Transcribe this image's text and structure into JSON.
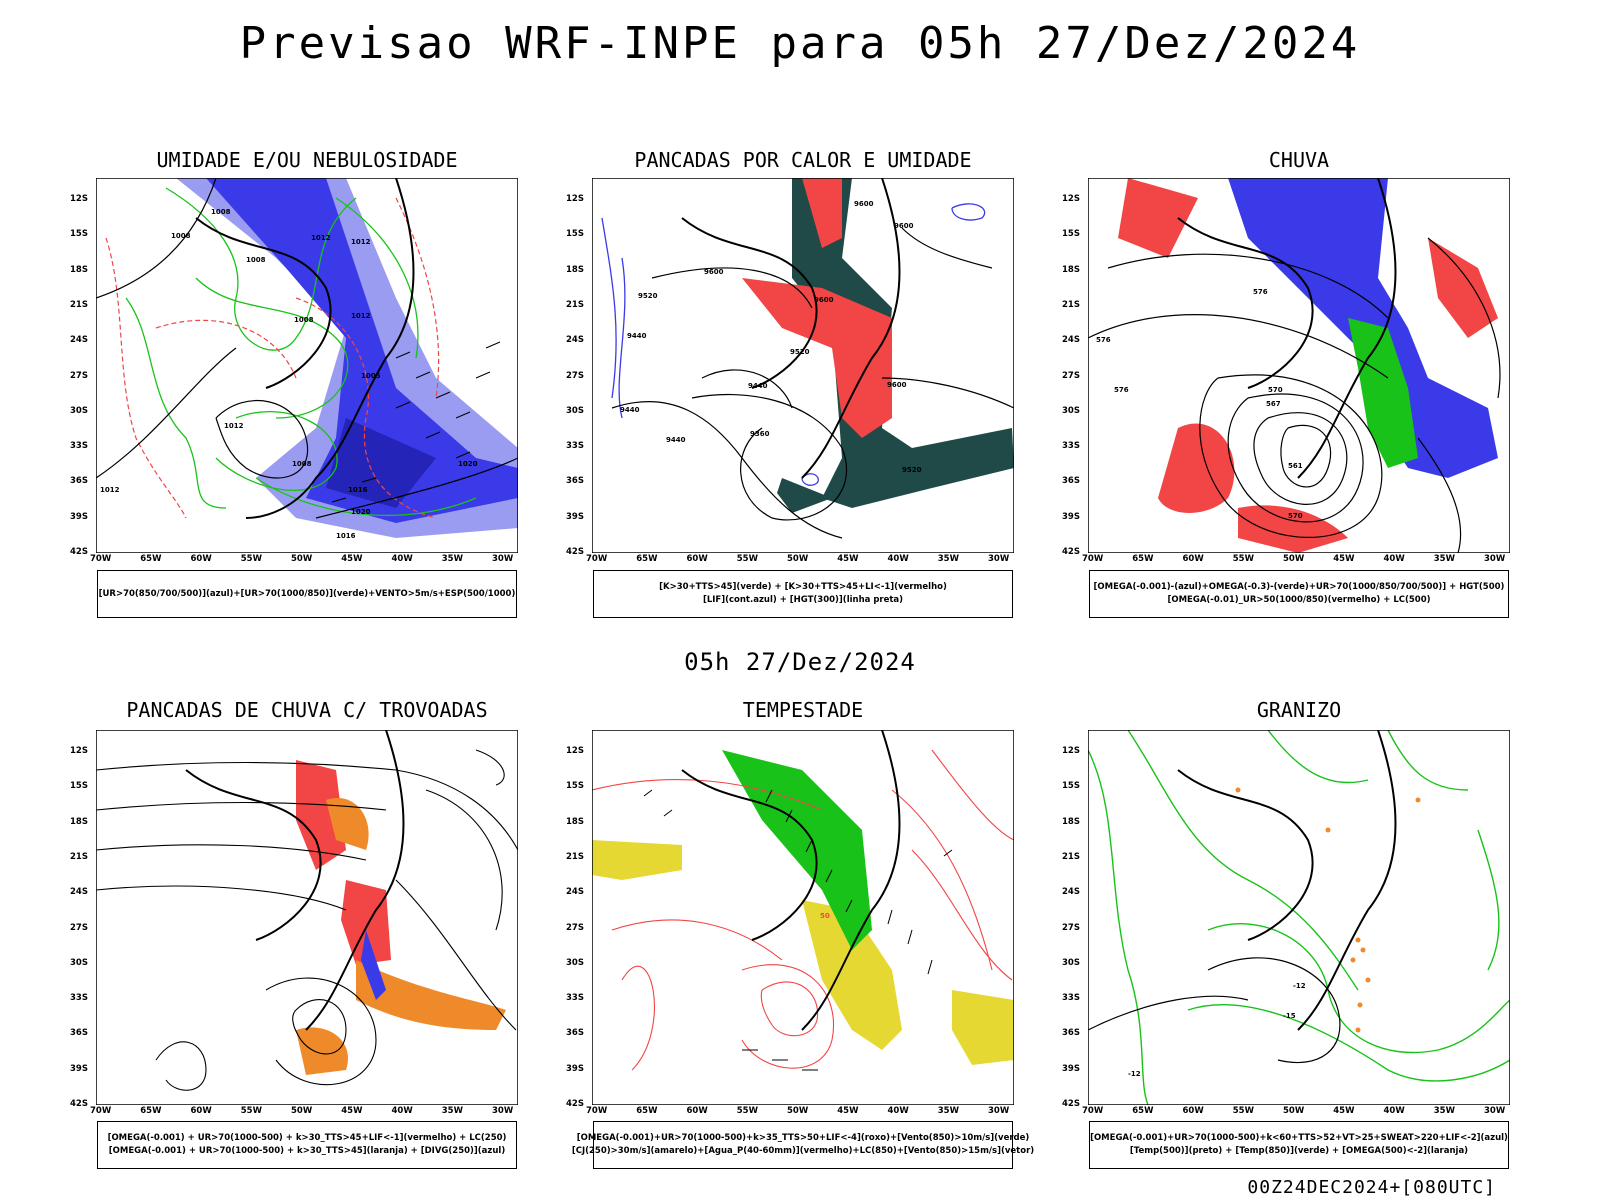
{
  "header": {
    "title": "Previsao WRF-INPE  para 05h 27/Dez/2024"
  },
  "mid": {
    "title": "05h 27/Dez/2024"
  },
  "footer": {
    "run": "00Z24DEC2024+[080UTC]"
  },
  "axes": {
    "lat_labels": [
      "12S",
      "15S",
      "18S",
      "21S",
      "24S",
      "27S",
      "30S",
      "33S",
      "36S",
      "39S",
      "42S"
    ],
    "lon_labels": [
      "70W",
      "65W",
      "60W",
      "55W",
      "50W",
      "45W",
      "40W",
      "35W",
      "30W"
    ]
  },
  "colors": {
    "blue": "#3a3ae8",
    "lightblue": "#9a9cf2",
    "green": "#19c219",
    "red": "#f24545",
    "darkteal": "#1f4a48",
    "orange": "#ef8a2a",
    "yellow": "#e6d832"
  },
  "panels": [
    {
      "title": "UMIDADE E/OU NEBULOSIDADE",
      "legend": [
        "[UR>70(850/700/500)](azul)+[UR>70(1000/850)](verde)+VENTO>5m/s+ESP(500/1000)"
      ],
      "labels": [
        "1008",
        "1008",
        "1012",
        "1012",
        "1008",
        "1008",
        "1012",
        "1005",
        "1008",
        "1012",
        "1020",
        "1012",
        "1016",
        "1020",
        "1016"
      ]
    },
    {
      "title": "PANCADAS POR CALOR E UMIDADE",
      "legend": [
        "[K>30+TTS>45](verde) + [K>30+TTS>45+LI<-1](vermelho)",
        "[LIF](cont.azul) + [HGT(300)](linha preta)"
      ],
      "labels": [
        "9600",
        "9600",
        "9600",
        "9520",
        "9600",
        "9520",
        "9440",
        "9440",
        "9440",
        "9440",
        "9360",
        "9600",
        "9520"
      ]
    },
    {
      "title": "CHUVA",
      "legend": [
        "[OMEGA(-0.001)-(azul)+OMEGA(-0.3)-(verde)+UR>70(1000/850/700/500)] + HGT(500)",
        "[OMEGA(-0.01)_UR>50(1000/850)(vermelho) + LC(500)"
      ],
      "labels": [
        "576",
        "576",
        "576",
        "570",
        "567",
        "561",
        "570"
      ]
    },
    {
      "title": "PANCADAS DE CHUVA C/ TROVOADAS",
      "legend": [
        "[OMEGA(-0.001) + UR>70(1000-500) + k>30_TTS>45+LIF<-1](vermelho) + LC(250)",
        "[OMEGA(-0.001) + UR>70(1000-500) + k>30_TTS>45](laranja) + [DIVG(250)](azul)"
      ],
      "labels": []
    },
    {
      "title": "TEMPESTADE",
      "legend": [
        "[OMEGA(-0.001)+UR>70(1000-500)+k>35_TTS>50+LIF<-4](roxo)+[Vento(850)>10m/s](verde)",
        "[CJ(250)>30m/s](amarelo)+[Agua_P(40-60mm)](vermelho)+LC(850)+[Vento(850)>15m/s](vetor)"
      ],
      "labels": [
        "50"
      ]
    },
    {
      "title": "GRANIZO",
      "legend": [
        "[OMEGA(-0.001)+UR>70(1000-500)+k<60+TTS>52+VT>25+SWEAT>220+LIF<-2](azul)",
        "[Temp(500)](preto) + [Temp(850)](verde) + [OMEGA(500)<-2](laranja)"
      ],
      "labels": [
        "-12",
        "-15",
        "-12"
      ]
    }
  ]
}
